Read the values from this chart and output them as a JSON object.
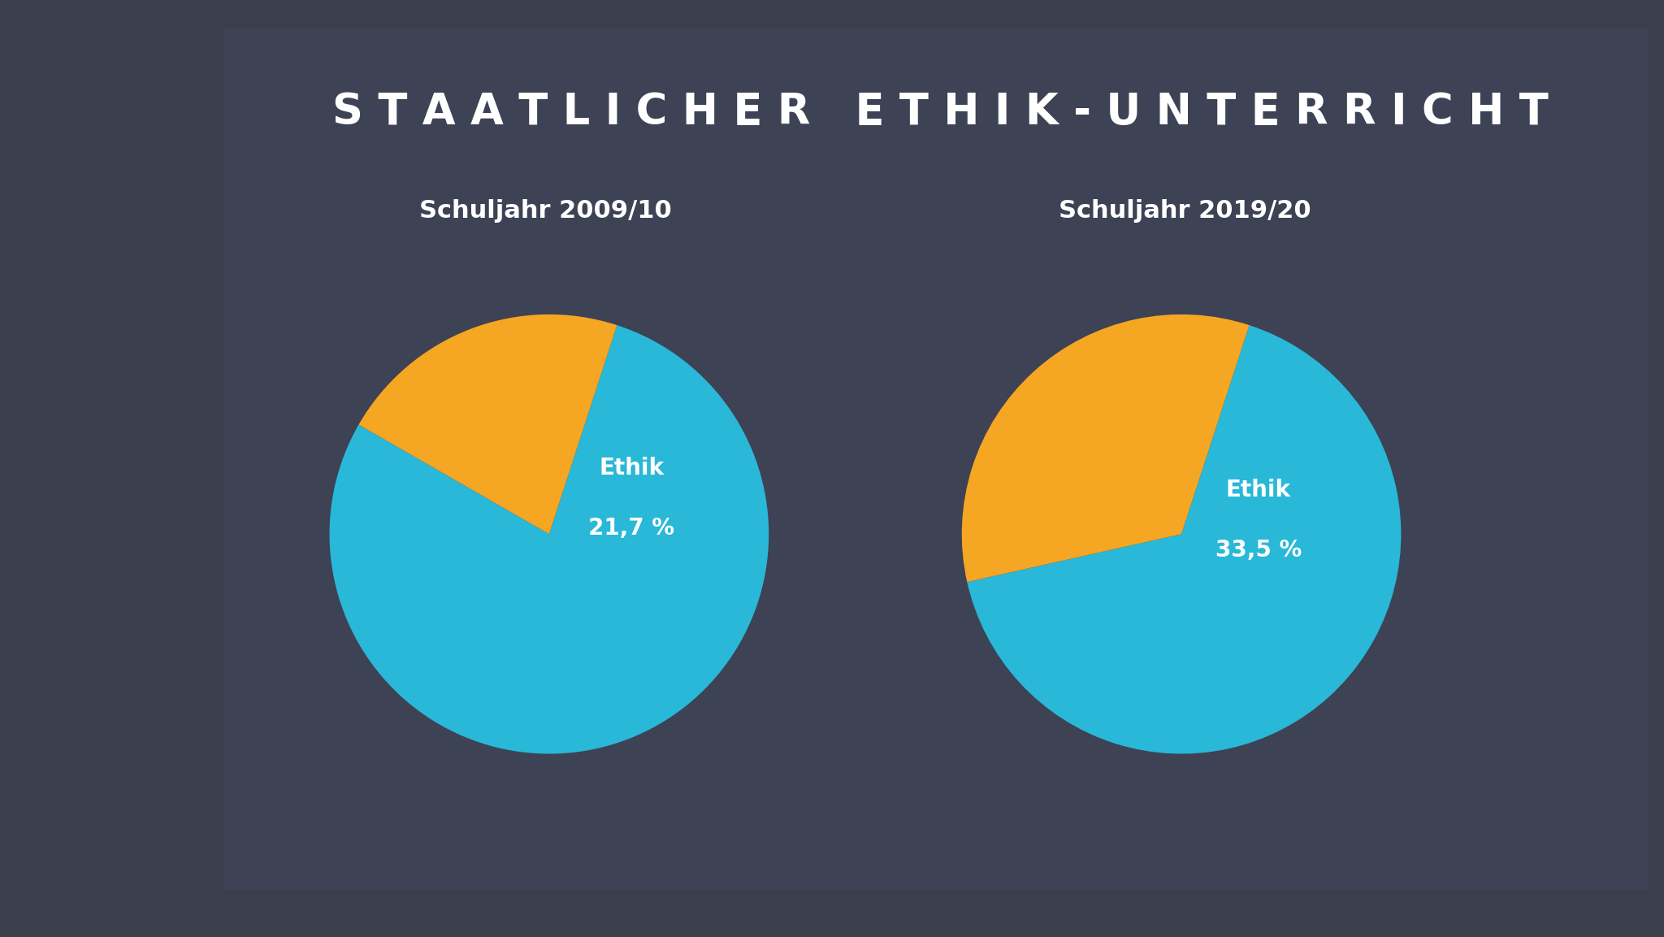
{
  "title": "S T A A T L I C H E R   E T H I K - U N T E R R I C H T",
  "bg_color": "#3a3f4e",
  "panel_color": "#3d4255",
  "pie1_title": "Schuljahr 2009/10",
  "pie2_title": "Schuljahr 2019/20",
  "pie1_values": [
    78.3,
    21.7
  ],
  "pie2_values": [
    66.5,
    33.5
  ],
  "pie1_label_line1": "Ethik",
  "pie1_label_line2": "21,7 %",
  "pie2_label_line1": "Ethik",
  "pie2_label_line2": "33,5 %",
  "color_blue": "#29b8d8",
  "color_orange": "#f5a623",
  "label_color": "#ffffff",
  "title_color": "#ffffff",
  "subtitle_color": "#ffffff",
  "title_fontsize": 38,
  "subtitle_fontsize": 22,
  "label_fontsize": 20
}
